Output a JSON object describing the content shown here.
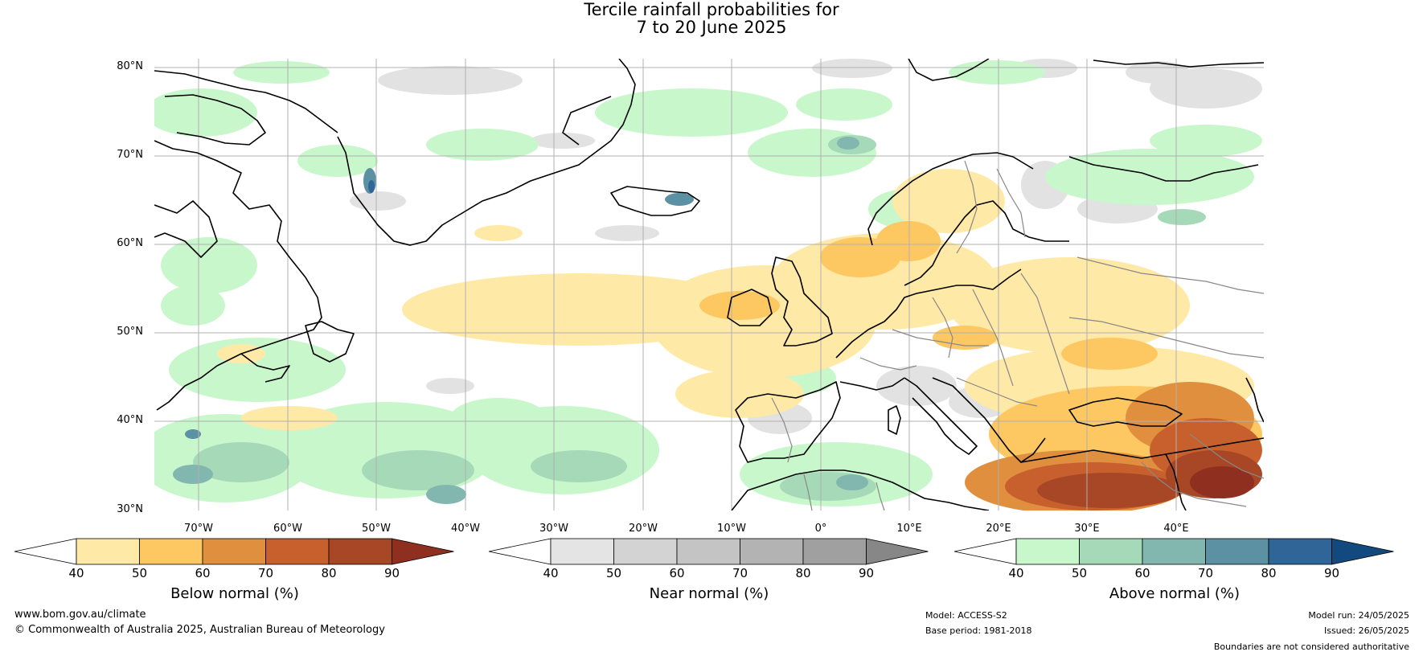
{
  "title": {
    "line1": "Tercile rainfall probabilities for",
    "line2": "7 to 20 June 2025"
  },
  "map": {
    "lat_labels": [
      "80°N",
      "70°N",
      "60°N",
      "50°N",
      "40°N",
      "30°N"
    ],
    "lon_labels": [
      "70°W",
      "60°W",
      "50°W",
      "40°W",
      "30°W",
      "20°W",
      "10°W",
      "0°",
      "10°E",
      "20°E",
      "30°E",
      "40°E"
    ],
    "colors": {
      "land_outline": "#000000",
      "border": "#888888",
      "grid": "#b0b0b0"
    }
  },
  "colorbars": [
    {
      "name": "below",
      "label": "Below normal (%)",
      "ticks": [
        "40",
        "50",
        "60",
        "70",
        "80",
        "90"
      ],
      "colors": [
        "#ffffff",
        "#ffe9a6",
        "#fdc862",
        "#e08f3e",
        "#c8602e",
        "#a84726",
        "#8f2f1f"
      ]
    },
    {
      "name": "near",
      "label": "Near normal (%)",
      "ticks": [
        "40",
        "50",
        "60",
        "70",
        "80",
        "90"
      ],
      "colors": [
        "#ffffff",
        "#e4e4e4",
        "#d3d3d3",
        "#c4c4c4",
        "#b3b3b3",
        "#a0a0a0",
        "#878787"
      ]
    },
    {
      "name": "above",
      "label": "Above normal (%)",
      "ticks": [
        "40",
        "50",
        "60",
        "70",
        "80",
        "90"
      ],
      "colors": [
        "#ffffff",
        "#c9f7cc",
        "#a5d9b8",
        "#82b7b0",
        "#5b91a2",
        "#2f6697",
        "#124a7f"
      ]
    }
  ],
  "footer": {
    "website": "www.bom.gov.au/climate",
    "copyright": "© Commonwealth of Australia 2025, Australian Bureau of Meteorology",
    "model": "Model: ACCESS-S2",
    "base_period": "Base period: 1981-2018",
    "model_run": "Model run: 24/05/2025",
    "issued": "Issued: 26/05/2025",
    "disclaimer": "Boundaries are not considered authoritative"
  }
}
